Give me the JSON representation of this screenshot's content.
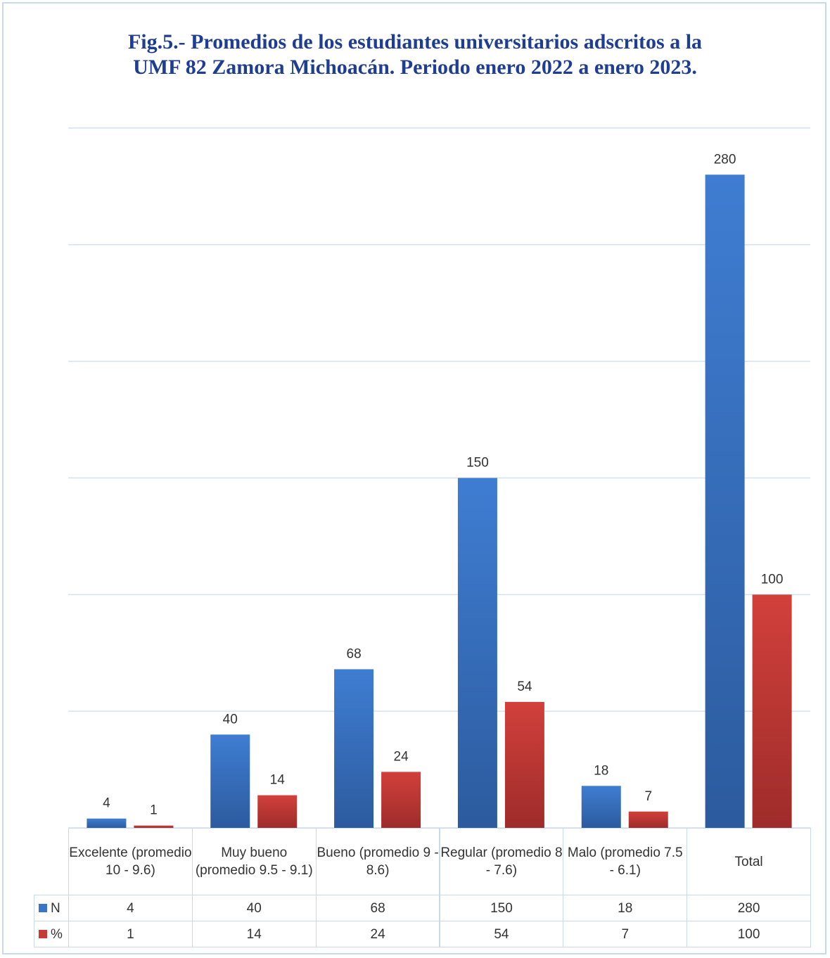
{
  "chart_data": {
    "type": "bar",
    "title": "Fig.5.- Promedios de los estudiantes universitarios adscritos a la UMF 82 Zamora Michoacán. Periodo enero 2022 a enero 2023.",
    "title_lines": [
      "Fig.5.- Promedios de los estudiantes universitarios adscritos a la",
      "UMF 82 Zamora Michoacán. Periodo enero 2022 a enero 2023."
    ],
    "categories": [
      "Excelente (promedio 10 - 9.6)",
      "Muy bueno (promedio 9.5 - 9.1)",
      "Bueno (promedio 9 - 8.6)",
      "Regular (promedio 8 - 7.6)",
      "Malo (promedio 7.5 - 6.1)",
      "Total"
    ],
    "series": [
      {
        "name": "N",
        "values": [
          4,
          40,
          68,
          150,
          18,
          280
        ],
        "color": "#3a75c9"
      },
      {
        "name": "%",
        "values": [
          1,
          14,
          24,
          54,
          7,
          100
        ],
        "color": "#c73b36"
      }
    ],
    "ylim": [
      0,
      300
    ],
    "gridlines": [
      0,
      50,
      100,
      150,
      200,
      250,
      300
    ],
    "grid": true,
    "legend": "data table below chart",
    "xlabel": "",
    "ylabel": ""
  }
}
